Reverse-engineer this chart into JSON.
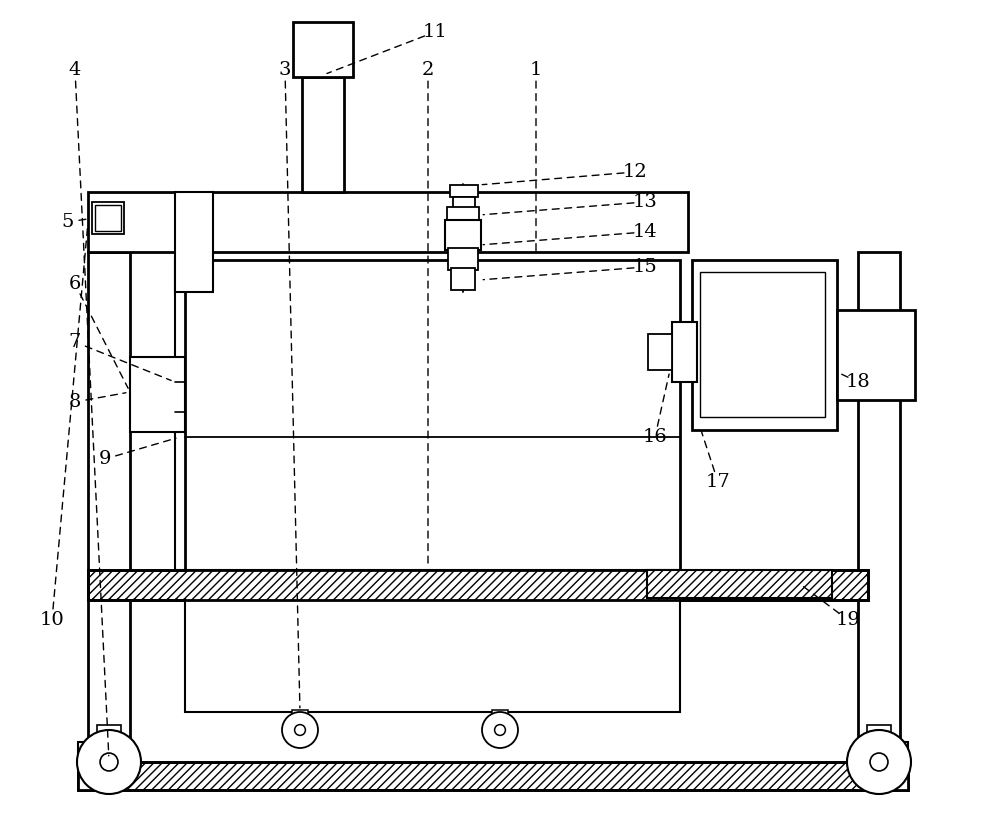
{
  "bg_color": "#ffffff",
  "lc": "#000000",
  "fig_w": 10.0,
  "fig_h": 8.32,
  "dpi": 100
}
